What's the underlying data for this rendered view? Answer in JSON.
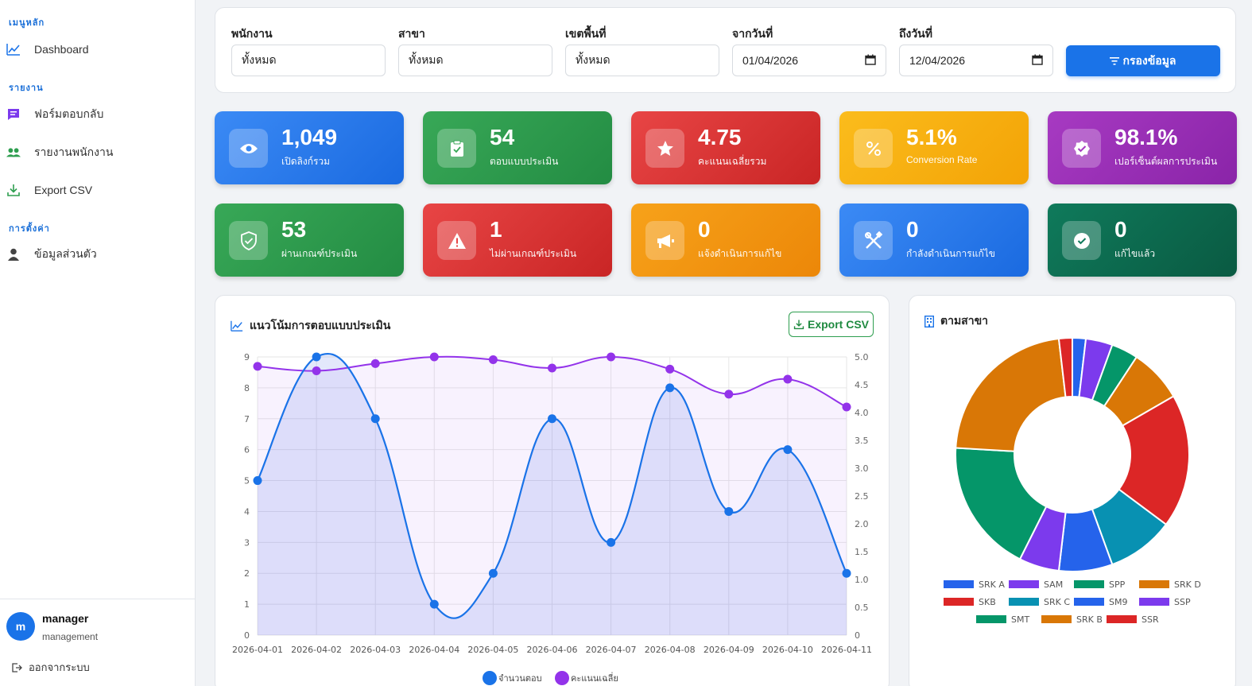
{
  "sidebar": {
    "sections": [
      {
        "title": "เมนูหลัก",
        "items": [
          {
            "label": "Dashboard",
            "icon": "trend-icon"
          }
        ]
      },
      {
        "title": "รายงาน",
        "items": [
          {
            "label": "ฟอร์มตอบกลับ",
            "icon": "form-icon"
          },
          {
            "label": "รายงานพนักงาน",
            "icon": "users-icon"
          },
          {
            "label": "Export CSV",
            "icon": "download-icon"
          }
        ]
      },
      {
        "title": "การตั้งค่า",
        "items": [
          {
            "label": "ข้อมูลส่วนตัว",
            "icon": "user-icon"
          }
        ]
      }
    ],
    "user": {
      "initial": "m",
      "name": "manager",
      "role": "management",
      "logout": "ออกจากระบบ"
    }
  },
  "filters": {
    "employee": {
      "label": "พนักงาน",
      "value": "ทั้งหมด"
    },
    "branch": {
      "label": "สาขา",
      "value": "ทั้งหมด"
    },
    "area": {
      "label": "เขตพื้นที่",
      "value": "ทั้งหมด"
    },
    "from_date": {
      "label": "จากวันที่",
      "value": "01/04/2026"
    },
    "to_date": {
      "label": "ถึงวันที่",
      "value": "12/04/2026"
    },
    "button": "กรองข้อมูล"
  },
  "stats": [
    {
      "value": "1,049",
      "label": "เปิดลิงก์รวม",
      "icon": "eye-icon",
      "color": "#2f7df3"
    },
    {
      "value": "54",
      "label": "ตอบแบบประเมิน",
      "icon": "clipboard-icon",
      "color": "#2e9e4f"
    },
    {
      "value": "4.75",
      "label": "คะแนนเฉลี่ยรวม",
      "icon": "star-icon",
      "color": "#dc3030"
    },
    {
      "value": "5.1%",
      "label": "Conversion Rate",
      "icon": "percent-icon",
      "color": "#f5b00a"
    },
    {
      "value": "98.1%",
      "label": "เปอร์เซ็นต์ผลการประเมิน",
      "icon": "badge-check-icon",
      "color": "#9b2fb8"
    },
    {
      "value": "53",
      "label": "ผ่านเกณฑ์ประเมิน",
      "icon": "shield-check-icon",
      "color": "#2e9e4f"
    },
    {
      "value": "1",
      "label": "ไม่ผ่านเกณฑ์ประเมิน",
      "icon": "warning-icon",
      "color": "#dc3030"
    },
    {
      "value": "0",
      "label": "แจ้งดำเนินการแก้ไข",
      "icon": "megaphone-icon",
      "color": "#f39c0b"
    },
    {
      "value": "0",
      "label": "กำลังดำเนินการแก้ไข",
      "icon": "tools-icon",
      "color": "#2f7df3"
    },
    {
      "value": "0",
      "label": "แก้ไขแล้ว",
      "icon": "check-circle-icon",
      "color": "#0d6b50"
    }
  ],
  "trend": {
    "title": "แนวโน้มการตอบแบบประเมิน",
    "export_label": "Export CSV"
  },
  "branch": {
    "title": "ตามสาขา"
  },
  "chart_data": [
    {
      "type": "line",
      "title": "แนวโน้มการตอบแบบประเมิน",
      "x": [
        "2026-04-01",
        "2026-04-02",
        "2026-04-03",
        "2026-04-04",
        "2026-04-05",
        "2026-04-06",
        "2026-04-07",
        "2026-04-08",
        "2026-04-09",
        "2026-04-10",
        "2026-04-11"
      ],
      "series": [
        {
          "name": "จำนวนตอบ",
          "axis": "left",
          "color": "#1a73e8",
          "values": [
            5,
            9,
            7,
            1,
            2,
            7,
            3,
            8,
            4,
            6,
            2
          ]
        },
        {
          "name": "คะแนนเฉลี่ย",
          "axis": "right",
          "color": "#9333ea",
          "values": [
            4.83,
            4.75,
            4.88,
            5.0,
            4.95,
            4.8,
            5.0,
            4.78,
            4.33,
            4.6,
            4.1
          ]
        }
      ],
      "ylim": [
        0,
        9
      ],
      "y2lim": [
        0,
        5
      ],
      "y_ticks": [
        0,
        1,
        2,
        3,
        4,
        5,
        6,
        7,
        8,
        9
      ],
      "y2_ticks": [
        "0",
        "0.5",
        "1.0",
        "1.5",
        "2.0",
        "2.5",
        "3.0",
        "3.5",
        "4.0",
        "4.5",
        "5.0"
      ],
      "grid": true,
      "legend": "bottom"
    },
    {
      "type": "pie",
      "title": "ตามสาขา",
      "donut": true,
      "categories": [
        "SRK A",
        "SAM",
        "SPP",
        "SRK D",
        "SKB",
        "SRK C",
        "SM9",
        "SSP",
        "SMT",
        "SRK B",
        "SSR"
      ],
      "values": [
        1,
        2,
        2,
        4,
        10,
        5,
        4,
        3,
        10,
        12,
        1
      ],
      "colors": [
        "#2563eb",
        "#7c3aed",
        "#059669",
        "#d97706",
        "#dc2626",
        "#0891b2",
        "#2563eb",
        "#7c3aed",
        "#059669",
        "#d97706",
        "#dc2626"
      ],
      "legend": "bottom"
    }
  ]
}
